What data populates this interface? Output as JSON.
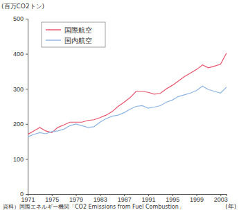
{
  "chart_data": {
    "type": "line",
    "y_label": "(百万CO2トン)",
    "x_label": "(年)",
    "source": "資料）国際エネルギー機関「CO2 Emissions from Fuel Combustion」",
    "x": [
      1971,
      1972,
      1973,
      1974,
      1975,
      1976,
      1977,
      1978,
      1979,
      1980,
      1981,
      1982,
      1983,
      1984,
      1985,
      1986,
      1987,
      1988,
      1989,
      1990,
      1991,
      1992,
      1993,
      1994,
      1995,
      1996,
      1997,
      1998,
      1999,
      2000,
      2001,
      2002,
      2003,
      2004
    ],
    "series": [
      {
        "name": "国際航空",
        "color": "#e8506a",
        "values": [
          170,
          180,
          190,
          180,
          175,
          190,
          197,
          205,
          205,
          205,
          210,
          212,
          218,
          225,
          235,
          250,
          262,
          275,
          293,
          293,
          290,
          285,
          287,
          300,
          310,
          322,
          335,
          345,
          355,
          368,
          360,
          365,
          370,
          402
        ]
      },
      {
        "name": "国内航空",
        "color": "#8db4e2",
        "values": [
          163,
          170,
          175,
          172,
          178,
          180,
          185,
          195,
          200,
          195,
          190,
          192,
          205,
          215,
          222,
          225,
          232,
          242,
          250,
          252,
          245,
          248,
          252,
          262,
          268,
          278,
          283,
          288,
          295,
          308,
          298,
          293,
          288,
          305
        ]
      }
    ],
    "xlim": [
      1971,
      2004
    ],
    "xticks": [
      1971,
      1975,
      1979,
      1983,
      1987,
      1991,
      1995,
      1999,
      2003
    ],
    "ylim": [
      0,
      500
    ],
    "yticks": [
      0,
      100,
      200,
      300,
      400,
      500
    ],
    "grid": false,
    "legend": "upper left"
  }
}
